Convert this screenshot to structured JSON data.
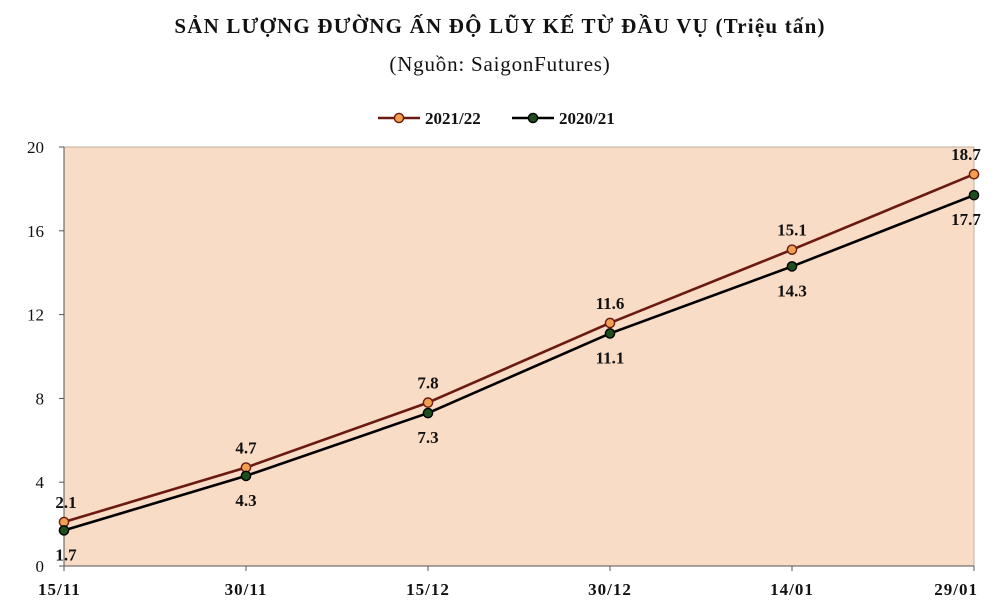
{
  "chart_data": {
    "type": "line",
    "title": "SẢN LƯỢNG ĐƯỜNG ẤN ĐỘ LŨY KẾ TỪ ĐẦU VỤ (Triệu tấn)",
    "subtitle": "(Nguồn: SaigonFutures)",
    "categories": [
      "15/11",
      "30/11",
      "15/12",
      "30/12",
      "14/01",
      "29/01"
    ],
    "ylim": [
      0,
      20
    ],
    "yticks": [
      0,
      4,
      8,
      12,
      16,
      20
    ],
    "grid": false,
    "legend_position": "top-center",
    "series": [
      {
        "name": "2021/22",
        "values": [
          2.1,
          4.7,
          7.8,
          11.6,
          15.1,
          18.7
        ],
        "labels": [
          "2.1",
          "4.7",
          "7.8",
          "11.6",
          "15.1",
          "18.7"
        ],
        "color": "#6b1a12",
        "marker_color": "#f0a050",
        "label_position": "above"
      },
      {
        "name": "2020/21",
        "values": [
          1.7,
          4.3,
          7.3,
          11.1,
          14.3,
          17.7
        ],
        "labels": [
          "1.7",
          "4.3",
          "7.3",
          "11.1",
          "14.3",
          "17.7"
        ],
        "color": "#000000",
        "marker_color": "#1e4d1e",
        "label_position": "below"
      }
    ],
    "plot_background": "#f9dcc6"
  }
}
